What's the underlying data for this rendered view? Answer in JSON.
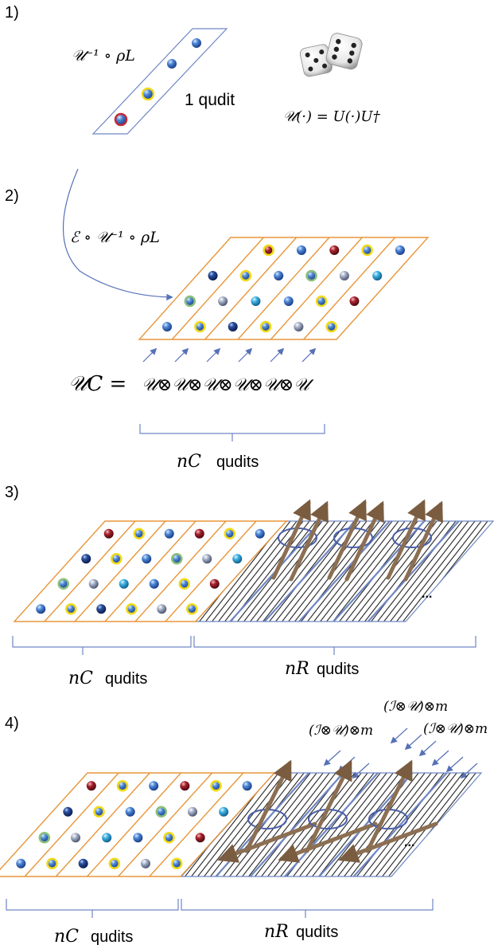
{
  "panels": [
    {
      "step": "1)",
      "formula_left": "𝒰⁻¹ ∘ ρL",
      "qudit_label": "1 qudit",
      "formula_right": "𝒰(·) = U(·)U†"
    },
    {
      "step": "2)",
      "formula": "ℰ ∘ 𝒰⁻¹ ∘ ρL",
      "uc_lhs": "𝒰C =",
      "uc_rhs": "𝒰⊗𝒰⊗𝒰⊗𝒰⊗𝒰⊗𝒰",
      "nc_symbol": "nC",
      "qudits_word": "qudits"
    },
    {
      "step": "3)",
      "nc_symbol": "nC",
      "nr_symbol": "nR",
      "qudits_word": "qudits",
      "ellipsis": "..."
    },
    {
      "step": "4)",
      "nc_symbol": "nC",
      "nr_symbol": "nR",
      "qudits_word": "qudits",
      "ellipsis": "...",
      "channel_label": "(ℐ⊗𝒰)⊗m"
    }
  ],
  "colors": {
    "grid_orange": "#e8963a",
    "grid_blue": "#6f87c4",
    "arrow_blue": "#5670b8",
    "rod_brown": "#8c6f53",
    "hatch": "#111111",
    "ball_blue": "#3a6fc0",
    "ball_navy": "#1b3b86",
    "ball_red": "#8b1a22",
    "ball_cyan": "#3aa7d6",
    "ball_grey": "#8f9bb5",
    "ring_yellow": "#f1da18",
    "ring_green": "#8cc07a"
  }
}
